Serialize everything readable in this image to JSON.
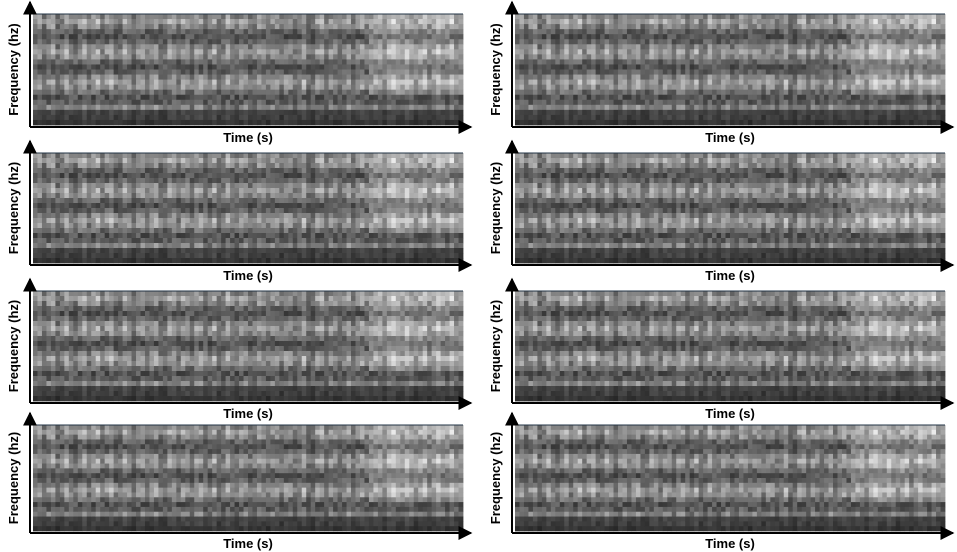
{
  "panels": [
    {
      "y_label": "Frequency (hz)",
      "x_label": "Time (s)"
    },
    {
      "y_label": "Frequency (hz)",
      "x_label": "Time (s)"
    },
    {
      "y_label": "Frequency (hz)",
      "x_label": "Time (s)"
    },
    {
      "y_label": "Frequency (hz)",
      "x_label": "Time (s)"
    },
    {
      "y_label": "Frequency (hz)",
      "x_label": "Time (s)"
    },
    {
      "y_label": "Frequency (hz)",
      "x_label": "Time (s)"
    },
    {
      "y_label": "Frequency (hz)",
      "x_label": "Time (s)"
    },
    {
      "y_label": "Frequency (hz)",
      "x_label": "Time (s)"
    }
  ]
}
